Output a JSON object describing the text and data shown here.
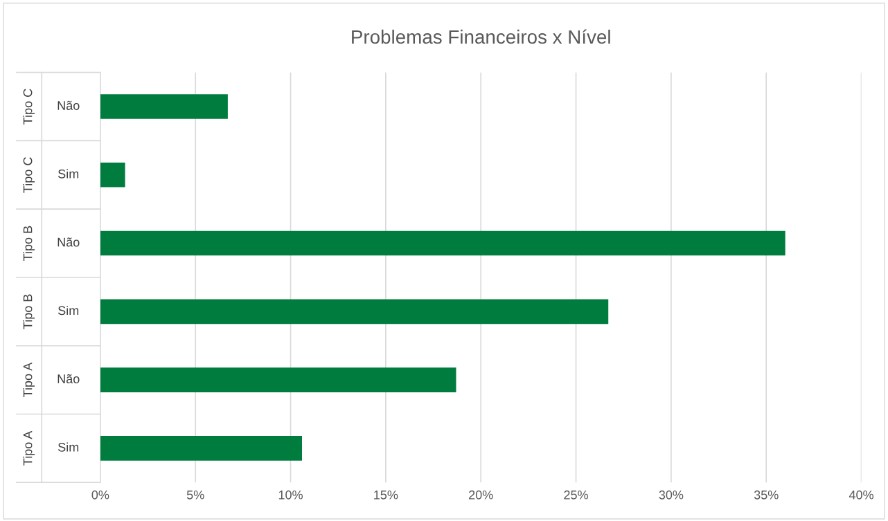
{
  "chart_data": {
    "type": "bar",
    "orientation": "horizontal",
    "title": "Problemas Financeiros x Nível",
    "categories": [
      "Não",
      "Sim",
      "Não",
      "Sim",
      "Não",
      "Sim"
    ],
    "annotations": [
      "Tipo C",
      "Tipo C",
      "Tipo B",
      "Tipo B",
      "Tipo A",
      "Tipo A"
    ],
    "values": [
      6.7,
      1.3,
      36.0,
      26.7,
      18.7,
      10.6
    ],
    "color": "#007c3e",
    "xlim": [
      0,
      40
    ],
    "xticks": [
      {
        "value": 0,
        "label": "0%"
      },
      {
        "value": 5,
        "label": "5%"
      },
      {
        "value": 10,
        "label": "10%"
      },
      {
        "value": 15,
        "label": "15%"
      },
      {
        "value": 20,
        "label": "20%"
      },
      {
        "value": 25,
        "label": "25%"
      },
      {
        "value": 30,
        "label": "30%"
      },
      {
        "value": 35,
        "label": "35%"
      },
      {
        "value": 40,
        "label": "40%"
      }
    ],
    "grid": "x",
    "legend": false
  }
}
